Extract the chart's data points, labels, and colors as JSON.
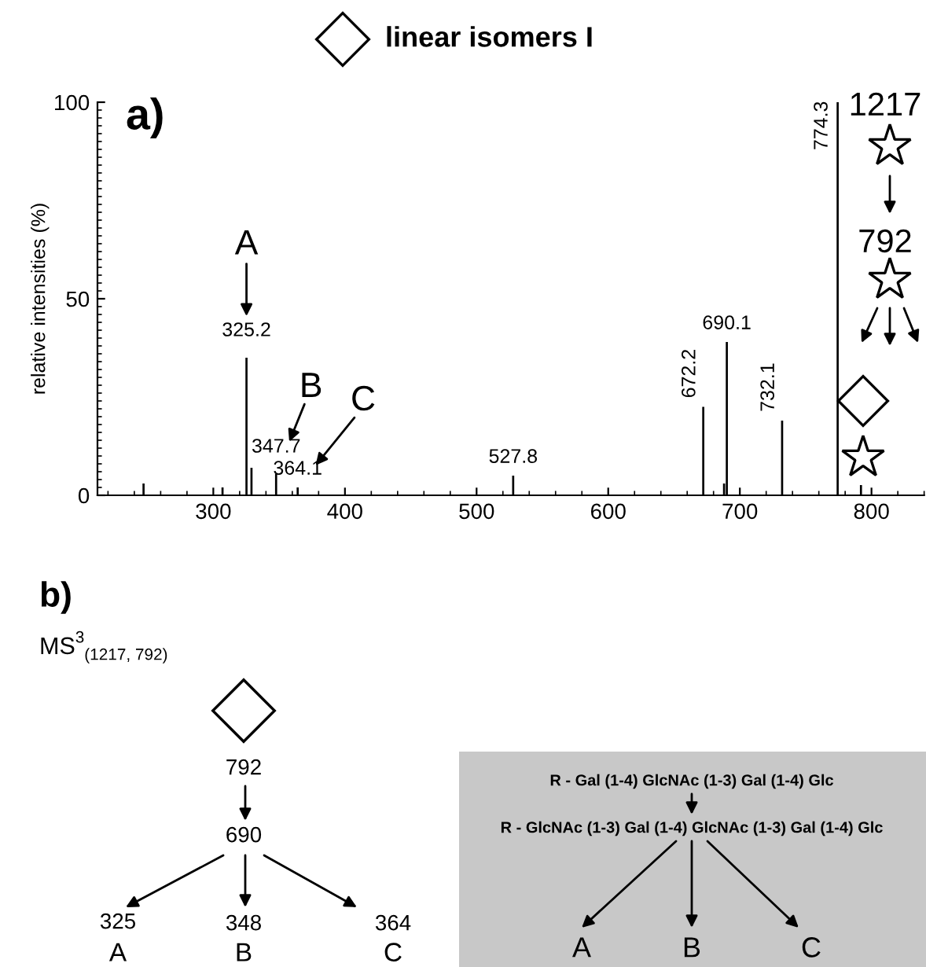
{
  "chart_data": {
    "type": "bar",
    "title": "linear isomers I",
    "ylabel": "relative intensities (%)",
    "x": [
      247,
      307,
      325.2,
      329,
      347.7,
      364.1,
      527.8,
      672.2,
      688,
      690.1,
      732.1,
      774.3,
      792
    ],
    "values": [
      3,
      2,
      35,
      7,
      5.4,
      2,
      5,
      22.5,
      3,
      39,
      19,
      100,
      2.6
    ],
    "color": "#000000",
    "xlim": [
      212,
      840
    ],
    "ylim": [
      0,
      100
    ],
    "xticks": [
      300,
      400,
      500,
      600,
      700,
      800
    ],
    "yticks": [
      0,
      50,
      100
    ],
    "grid": false,
    "legend": false,
    "annotations": [
      {
        "text": "325.2",
        "x": 325.2,
        "y": 35
      },
      {
        "text": "347.7",
        "x": 347.7,
        "y": 5.4
      },
      {
        "text": "364.1",
        "x": 364.1,
        "y": 2
      },
      {
        "text": "527.8",
        "x": 527.8,
        "y": 5
      },
      {
        "text": "672.2",
        "x": 672.2,
        "y": 22.5
      },
      {
        "text": "690.1",
        "x": 690.1,
        "y": 39
      },
      {
        "text": "732.1",
        "x": 732.1,
        "y": 19
      },
      {
        "text": "774.3",
        "x": 774.3,
        "y": 100
      },
      {
        "text": "A",
        "x": 325.2,
        "y": 35
      },
      {
        "text": "B",
        "x": 347.7,
        "y": 5.4
      },
      {
        "text": "C",
        "x": 364.1,
        "y": 2
      },
      "a)",
      "1217",
      "792",
      "b)",
      "MS$^{3}$$_{(1217, 792)}$",
      "792",
      "690",
      "325",
      "348",
      "364",
      "A",
      "B",
      "C",
      "R - Gal (1-4) GlcNAc (1-3) Gal (1-4) Glc",
      "R - GlcNAc (1-3) Gal (1-4) GlcNAc (1-3) Gal (1-4) Glc",
      "A",
      "B",
      "C"
    ]
  }
}
